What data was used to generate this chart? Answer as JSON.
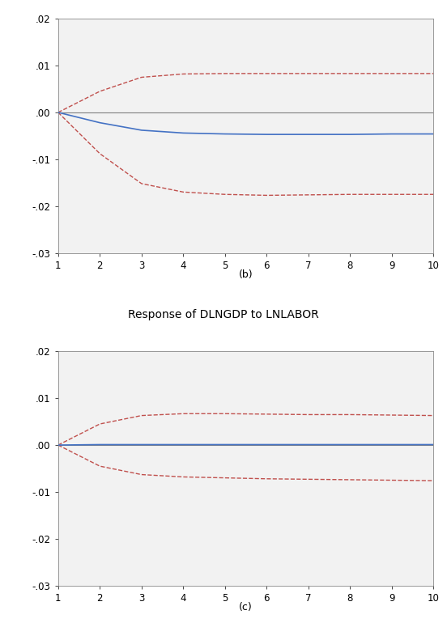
{
  "panel_b": {
    "label": "(b)",
    "x": [
      1,
      2,
      3,
      4,
      5,
      6,
      7,
      8,
      9,
      10
    ],
    "irf": [
      0.0,
      -0.0022,
      -0.0038,
      -0.0044,
      -0.0046,
      -0.0047,
      -0.0047,
      -0.0047,
      -0.0046,
      -0.0046
    ],
    "upper": [
      0.0,
      0.0045,
      0.0075,
      0.0082,
      0.0083,
      0.0083,
      0.0083,
      0.0083,
      0.0083,
      0.0083
    ],
    "lower": [
      0.0,
      -0.0088,
      -0.0152,
      -0.017,
      -0.0175,
      -0.0177,
      -0.0176,
      -0.0175,
      -0.0175,
      -0.0175
    ],
    "ylim": [
      -0.03,
      0.02
    ],
    "yticks": [
      -0.03,
      -0.02,
      -0.01,
      0.0,
      0.01,
      0.02
    ]
  },
  "panel_c": {
    "label": "(c)",
    "x": [
      1,
      2,
      3,
      4,
      5,
      6,
      7,
      8,
      9,
      10
    ],
    "irf": [
      0.0,
      0.0001,
      0.0001,
      0.0001,
      0.0001,
      0.0001,
      0.0001,
      0.0001,
      0.0001,
      0.0001
    ],
    "upper": [
      0.0,
      0.0045,
      0.0063,
      0.0067,
      0.0067,
      0.0066,
      0.0065,
      0.0065,
      0.0064,
      0.0063
    ],
    "lower": [
      0.0,
      -0.0045,
      -0.0063,
      -0.0068,
      -0.007,
      -0.0072,
      -0.0073,
      -0.0074,
      -0.0075,
      -0.0076
    ],
    "ylim": [
      -0.03,
      0.02
    ],
    "yticks": [
      -0.03,
      -0.02,
      -0.01,
      0.0,
      0.01,
      0.02
    ]
  },
  "between_label": "Response of DLNGDP to LNLABOR",
  "line_color_irf": "#4472C4",
  "line_color_ci": "#C0504D",
  "zero_line_color": "#808080",
  "bg_color": "#FFFFFF",
  "panel_bg": "#F2F2F2",
  "xticks": [
    1,
    2,
    3,
    4,
    5,
    6,
    7,
    8,
    9,
    10
  ],
  "figsize": [
    5.52,
    7.7
  ],
  "dpi": 100
}
